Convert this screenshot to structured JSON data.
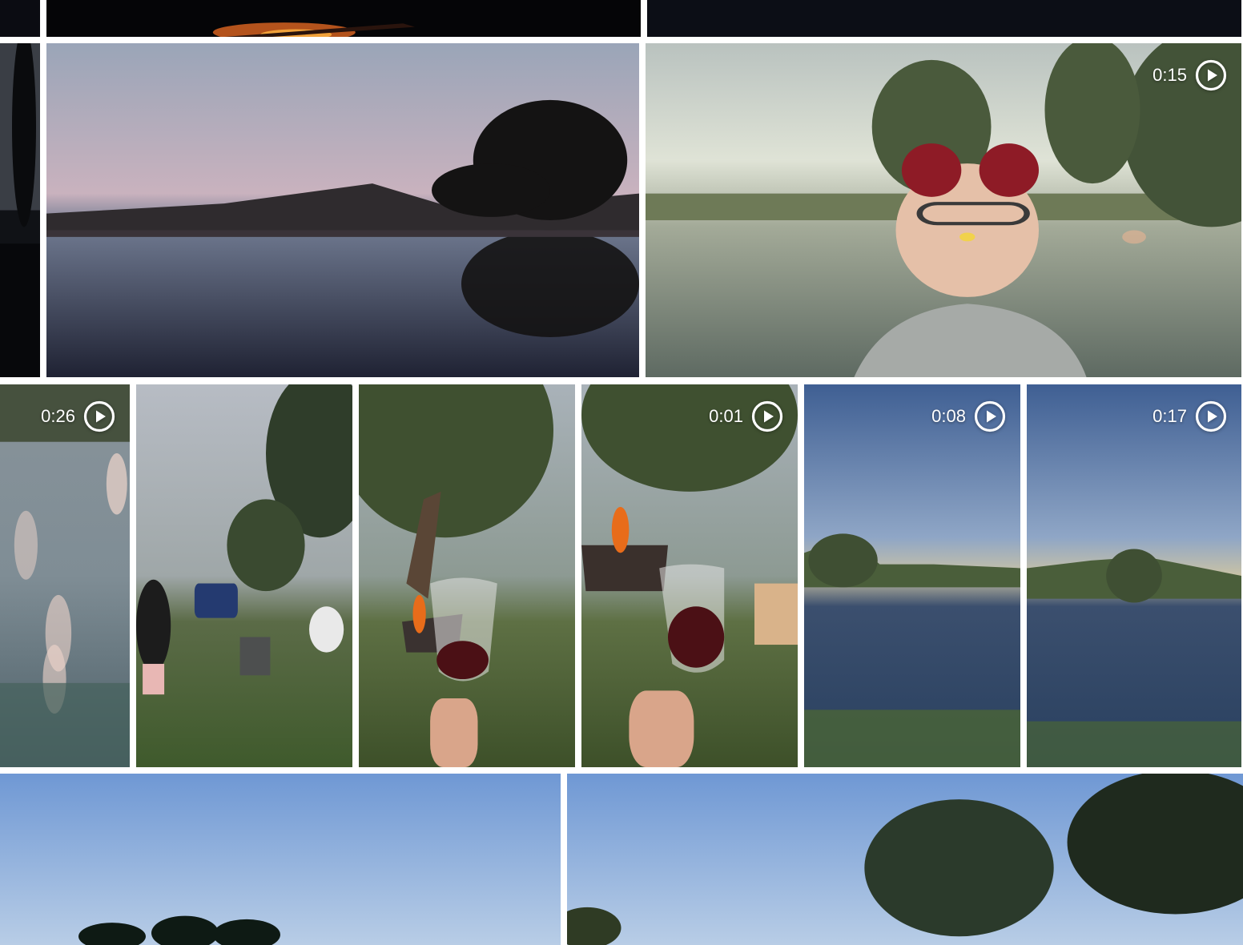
{
  "gallery": {
    "rows": [
      {
        "items": [
          {
            "name": "photo-dark-edge",
            "kind": "photo"
          },
          {
            "name": "photo-campfire-night",
            "kind": "photo"
          },
          {
            "name": "photo-night-sky",
            "kind": "photo"
          }
        ]
      },
      {
        "items": [
          {
            "name": "photo-tree-silhouette-edge",
            "kind": "photo"
          },
          {
            "name": "photo-dusk-lake-reflection",
            "kind": "photo"
          },
          {
            "name": "video-selfie-cat-ears",
            "kind": "video",
            "duration": "0:15"
          }
        ]
      },
      {
        "items": [
          {
            "name": "video-lake-bokeh",
            "kind": "video",
            "duration": "0:26"
          },
          {
            "name": "photo-campsite-people",
            "kind": "photo"
          },
          {
            "name": "photo-wine-glass-willow",
            "kind": "photo"
          },
          {
            "name": "video-wine-glass-fire",
            "kind": "video",
            "duration": "0:01"
          },
          {
            "name": "video-river-blue-hour",
            "kind": "video",
            "duration": "0:08"
          },
          {
            "name": "video-river-evening",
            "kind": "video",
            "duration": "0:17"
          }
        ]
      },
      {
        "items": [
          {
            "name": "photo-blue-sky-treeline",
            "kind": "photo"
          },
          {
            "name": "photo-tree-canopy-sky",
            "kind": "photo"
          }
        ]
      }
    ]
  },
  "icons": {
    "play": "play-circle-icon"
  }
}
